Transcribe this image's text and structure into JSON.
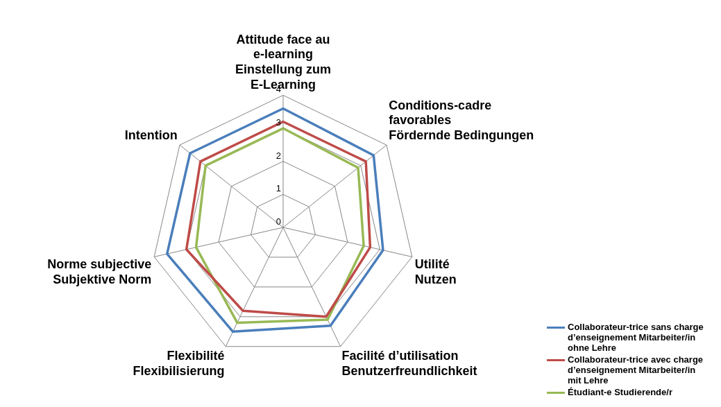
{
  "chart_data": {
    "type": "radar",
    "categories": [
      "Attitude face au\ne-learning\nEinstellung zum\nE-Learning",
      "Conditions-cadre\nfavorables\nFördernde Bedingungen",
      "Utilité\nNutzen",
      "Facilité d’utilisation\nBenutzerfreundlichkeit",
      "Flexibilité\nFlexibilisierung",
      "Norme subjective\nSubjektive Norm",
      "Intention"
    ],
    "series": [
      {
        "name": "Collaborateur-trice sans charge d’enseignement Mitarbeiter/in ohne Lehre",
        "color": "#4a7ebb",
        "values": [
          3.6,
          3.5,
          3.1,
          3.3,
          3.5,
          3.6,
          3.6
        ]
      },
      {
        "name": "Collaborateur-trice avec charge d’enseignement Mitarbeiter/in mit Lehre",
        "color": "#be4b48",
        "values": [
          3.2,
          3.2,
          2.7,
          3.0,
          2.8,
          3.0,
          3.2
        ]
      },
      {
        "name": "Étudiant-e Studierende/r",
        "color": "#98b954",
        "values": [
          3.0,
          2.9,
          2.5,
          3.1,
          3.2,
          2.7,
          3.0
        ]
      }
    ],
    "ylim": [
      0,
      4
    ],
    "yticks": [
      0,
      1,
      2,
      3,
      4
    ],
    "grid": true,
    "legend": "bottom right",
    "marker": "none",
    "line_style": "solid"
  }
}
